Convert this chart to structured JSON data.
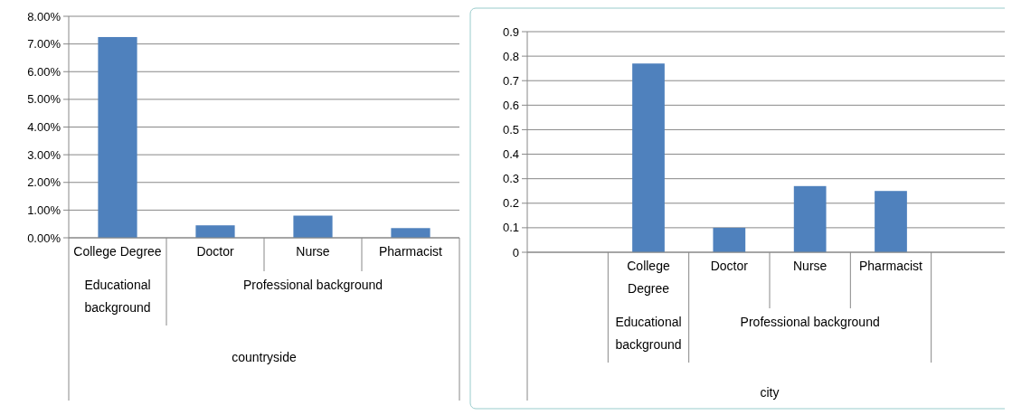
{
  "chart_data": [
    {
      "type": "bar",
      "categories": [
        "College Degree",
        "Doctor",
        "Nurse",
        "Pharmacist"
      ],
      "values": [
        7.25,
        0.45,
        0.8,
        0.35
      ],
      "color": "#4f81bd",
      "ylim": [
        0,
        8
      ],
      "yticks": [
        {
          "value": 0,
          "label": "0.00%"
        },
        {
          "value": 1,
          "label": "1.00%"
        },
        {
          "value": 2,
          "label": "2.00%"
        },
        {
          "value": 3,
          "label": "3.00%"
        },
        {
          "value": 4,
          "label": "4.00%"
        },
        {
          "value": 5,
          "label": "5.00%"
        },
        {
          "value": 6,
          "label": "6.00%"
        },
        {
          "value": 7,
          "label": "7.00%"
        },
        {
          "value": 8,
          "label": "8.00%"
        }
      ],
      "grid": "y",
      "xlabel": "countryside",
      "annotations": [
        "Educational background",
        "Professional background"
      ]
    },
    {
      "type": "bar",
      "categories": [
        null,
        "College Degree",
        "Doctor",
        "Nurse",
        "Pharmacist",
        null
      ],
      "values": [
        null,
        0.77,
        0.1,
        0.27,
        0.25,
        null
      ],
      "color": "#4f81bd",
      "ylim": [
        0,
        0.9
      ],
      "yticks": [
        0,
        0.1,
        0.2,
        0.3,
        0.4,
        0.5,
        0.6,
        0.7,
        0.8,
        0.9
      ],
      "grid": "y",
      "xlabel": "city",
      "annotations": [
        "Educational background",
        "Professional background"
      ]
    }
  ]
}
